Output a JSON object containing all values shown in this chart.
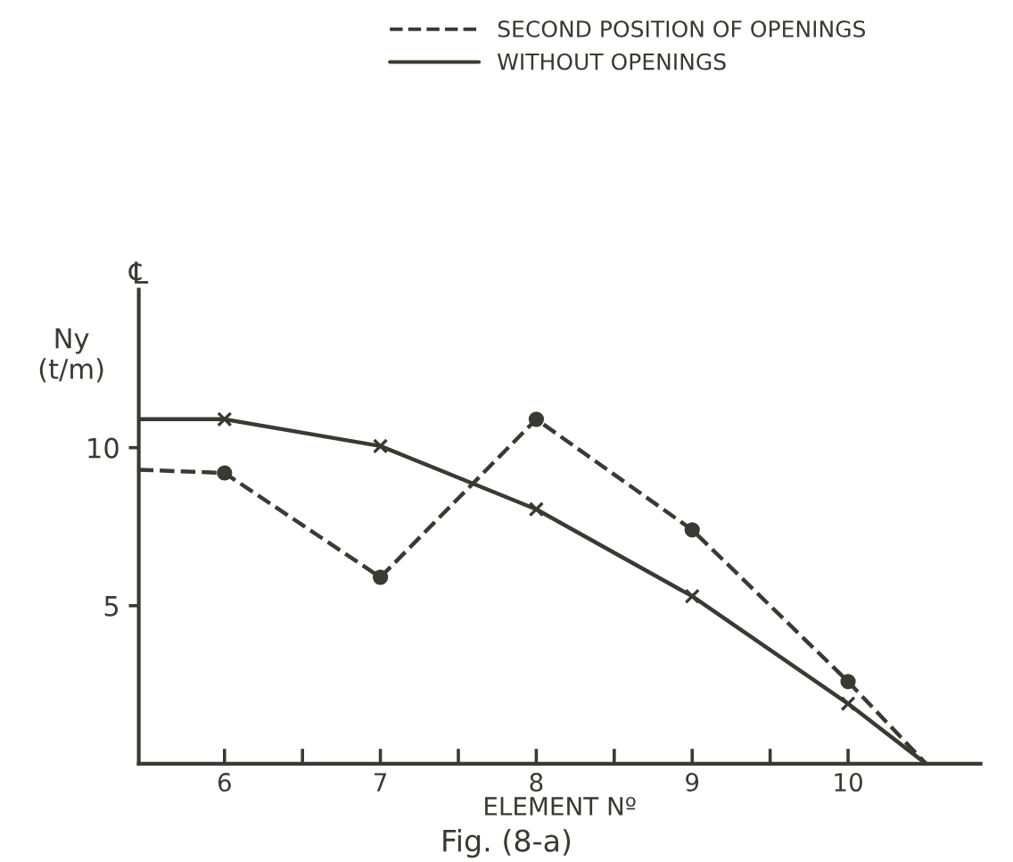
{
  "chart_data": {
    "type": "line",
    "xlabel": "ELEMENT Nº",
    "ylabel": "Ny\n(t/m)",
    "annotations": [
      "℄",
      "Fig. (8-a)"
    ],
    "xlim": [
      5.45,
      10.85
    ],
    "ylim": [
      0,
      15
    ],
    "xticks": [
      6,
      {
        "value": 6.5,
        "label": null
      },
      7,
      {
        "value": 7.5,
        "label": null
      },
      8,
      {
        "value": 8.5,
        "label": null
      },
      9,
      {
        "value": 9.5,
        "label": null
      },
      10
    ],
    "yticks": [
      5,
      10
    ],
    "legend": "top",
    "grid": false,
    "series": [
      {
        "name": "SECOND POSITION OF OPENINGS",
        "color": "#3a3a32",
        "line_style": "dashed",
        "marker": "circle",
        "x": [
          5.45,
          6,
          7,
          8,
          9,
          10,
          10.5
        ],
        "values": [
          9.3,
          9.2,
          5.9,
          10.9,
          7.4,
          2.6,
          0
        ]
      },
      {
        "name": "WITHOUT OPENINGS",
        "color": "#3a3a32",
        "line_style": "solid",
        "marker": "cross",
        "x": [
          5.45,
          6,
          7,
          8,
          9,
          10,
          10.5
        ],
        "values": [
          10.9,
          10.9,
          10.05,
          8.05,
          5.3,
          1.9,
          0
        ]
      }
    ]
  }
}
